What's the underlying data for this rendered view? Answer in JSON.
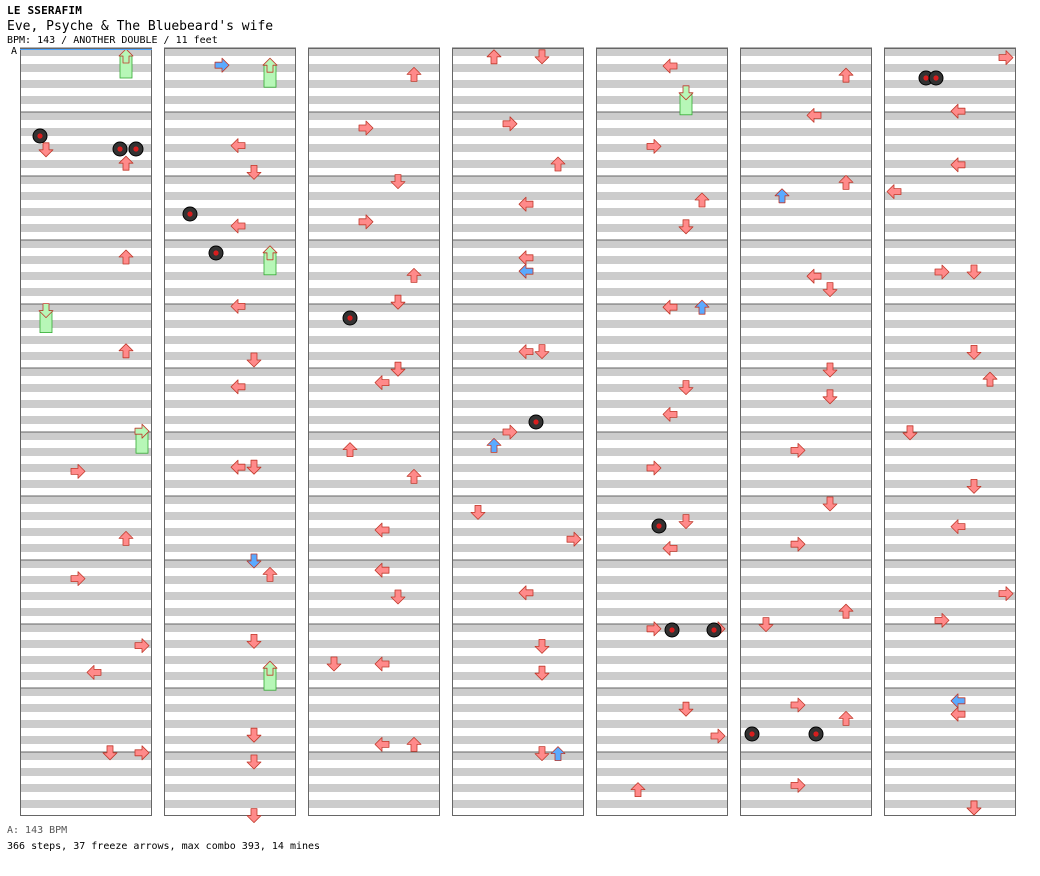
{
  "header": {
    "artist": "LE SSERAFIM",
    "song_title": "Eve, Psyche & The Bluebeard's wife",
    "meta_line": "BPM: 143 / ANOTHER DOUBLE / 11 feet",
    "bpm_marker": "A"
  },
  "footer": {
    "bpm_text": "A: 143 BPM",
    "stats_text": "366 steps, 37 freeze arrows, max combo 393, 14 mines"
  },
  "chart_data": {
    "type": "step-chart",
    "style": "double",
    "bpm": 143,
    "lanes": [
      "P1-left",
      "P1-down",
      "P1-up",
      "P1-right",
      "P2-left",
      "P2-down",
      "P2-up",
      "P2-right"
    ],
    "columns": 7,
    "measures_per_column": 12,
    "colors": {
      "quarter": "#ff8a8a",
      "eighth": "#5aaaff",
      "sixteenth": "#f3a6f3",
      "freeze": "#b7f7b7",
      "mine": "#333333",
      "mine_core": "#d81e1e",
      "row_shade": "#cccccc",
      "border": "#666666"
    },
    "notes": [
      [
        7,
        7,
        "down",
        "q"
      ],
      [
        19,
        7,
        "down",
        "f"
      ],
      [
        31,
        15,
        "right",
        "q"
      ],
      [
        39,
        13,
        "up",
        "q"
      ],
      [
        46,
        18,
        "right",
        "q"
      ],
      [
        52,
        22,
        "left",
        "q"
      ],
      [
        58,
        13,
        "up",
        "e"
      ],
      [
        64,
        16,
        "up",
        "q"
      ],
      [
        70,
        16,
        "left",
        "q"
      ],
      [
        76,
        18,
        "up",
        "q"
      ],
      [
        82,
        17,
        "up",
        "q"
      ],
      [
        88,
        21,
        "right",
        "q"
      ],
      [
        95,
        22,
        "up",
        "e"
      ],
      [
        101,
        20,
        "down",
        "q"
      ],
      [
        108,
        22,
        "right",
        "q"
      ],
      [
        114,
        20,
        "down",
        "q"
      ],
      [
        120,
        12,
        "up",
        "q"
      ],
      [
        127,
        14,
        "up",
        "q"
      ],
      [
        133,
        23,
        "up",
        "q"
      ],
      [
        139,
        18,
        "right",
        "q"
      ],
      [
        144,
        8,
        "down",
        "q"
      ],
      [
        150,
        17,
        "down",
        "q"
      ],
      [
        155,
        20,
        "down",
        "q"
      ],
      [
        160,
        4,
        "right",
        "q"
      ],
      [
        166,
        16,
        "right",
        "q"
      ],
      [
        172,
        8,
        "down",
        "q"
      ],
      [
        177,
        15,
        "up",
        "q"
      ],
      [
        183,
        17,
        "down",
        "q"
      ],
      [
        188,
        18,
        "down",
        "e"
      ],
      [
        194,
        20,
        "down",
        "q"
      ],
      [
        200,
        14,
        "right",
        "q"
      ],
      [
        206,
        5,
        "up",
        "q"
      ],
      [
        212,
        17,
        "right",
        "q"
      ],
      [
        218,
        22,
        "left",
        "q"
      ],
      [
        224,
        21,
        "down",
        "q"
      ],
      [
        230,
        18,
        "up",
        "q"
      ],
      [
        236,
        15,
        "right",
        "q"
      ],
      [
        242,
        21,
        "left",
        "q"
      ],
      [
        248,
        17,
        "down",
        "q"
      ],
      [
        254,
        21,
        "up",
        "q"
      ],
      [
        260,
        12,
        "up",
        "q"
      ],
      [
        266,
        18,
        "right",
        "q"
      ],
      [
        272,
        12,
        "right",
        "q"
      ],
      [
        278,
        22,
        "right",
        "q"
      ],
      [
        284,
        9,
        "up",
        "q"
      ],
      [
        291,
        18,
        "right",
        "q"
      ],
      [
        297,
        10,
        "right",
        "e"
      ],
      [
        303,
        16,
        "down",
        "q"
      ],
      [
        310,
        22,
        "down",
        "q"
      ],
      [
        316,
        15,
        "down",
        "q"
      ],
      [
        323,
        14,
        "right",
        "q"
      ],
      [
        329,
        7,
        "right",
        "q"
      ],
      [
        335,
        13,
        "up",
        "q"
      ],
      [
        341,
        13,
        "right",
        "q"
      ],
      [
        348,
        18,
        "left",
        "q"
      ],
      [
        354,
        3,
        "up",
        "q"
      ],
      [
        360,
        12,
        "right",
        "q"
      ],
      [
        366,
        22,
        "up",
        "q"
      ],
      [
        372,
        6,
        "right",
        "q"
      ],
      [
        379,
        19,
        "right",
        "q"
      ],
      [
        386,
        14,
        "up",
        "q"
      ],
      [
        393,
        17,
        "left",
        "q"
      ],
      [
        400,
        22,
        "down",
        "q"
      ],
      [
        0,
        24,
        "left",
        "f"
      ],
      [
        8,
        24,
        "left",
        "q"
      ],
      [
        15,
        25,
        "up",
        "q"
      ],
      [
        22,
        27,
        "left",
        "q"
      ],
      [
        28,
        29,
        "up",
        "f"
      ],
      [
        36,
        26,
        "down",
        "q"
      ],
      [
        44,
        28,
        "down",
        "q"
      ],
      [
        52,
        29,
        "right",
        "q"
      ],
      [
        58,
        24,
        "up",
        "f"
      ],
      [
        66,
        23,
        "up",
        "q"
      ],
      [
        72,
        25,
        "up",
        "f"
      ],
      [
        80,
        20,
        "left",
        "q"
      ],
      [
        88,
        18,
        "down",
        "q"
      ],
      [
        96,
        25,
        "up",
        "q"
      ],
      [
        103,
        27,
        "up",
        "f"
      ],
      [
        110,
        23,
        "down",
        "q"
      ],
      [
        116,
        25,
        "right",
        "q"
      ],
      [
        124,
        21,
        "up",
        "q"
      ],
      [
        131,
        26,
        "left",
        "q"
      ],
      [
        138,
        21,
        "left",
        "q"
      ],
      [
        146,
        24,
        "left",
        "q"
      ],
      [
        153,
        19,
        "down",
        "q"
      ],
      [
        160,
        18,
        "up",
        "q"
      ],
      [
        166,
        24,
        "right",
        "q"
      ],
      [
        172,
        20,
        "left",
        "q"
      ],
      [
        180,
        27,
        "down",
        "q"
      ],
      [
        187,
        16,
        "down",
        "q"
      ],
      [
        194,
        17,
        "right",
        "q"
      ],
      [
        201,
        11,
        "right",
        "e"
      ],
      [
        208,
        29,
        "down",
        "q"
      ],
      [
        216,
        22,
        "left",
        "q"
      ],
      [
        224,
        24,
        "up",
        "e"
      ],
      [
        232,
        21,
        "left",
        "f"
      ],
      [
        240,
        24,
        "left",
        "q"
      ],
      [
        248,
        25,
        "down",
        "e"
      ],
      [
        256,
        19,
        "up",
        "q"
      ],
      [
        264,
        22,
        "up",
        "q"
      ],
      [
        272,
        28,
        "right",
        "q"
      ],
      [
        280,
        30,
        "down",
        "q"
      ],
      [
        288,
        24,
        "right",
        "q"
      ],
      [
        296,
        25,
        "left",
        "q"
      ],
      [
        304,
        21,
        "left",
        "q"
      ],
      [
        312,
        22,
        "down",
        "q"
      ],
      [
        320,
        20,
        "right",
        "q"
      ],
      [
        328,
        24,
        "right",
        "q"
      ],
      [
        336,
        27,
        "right",
        "q"
      ],
      [
        344,
        29,
        "up",
        "q"
      ],
      [
        352,
        19,
        "down",
        "q"
      ],
      [
        360,
        23,
        "right",
        "q"
      ],
      [
        368,
        24,
        "left",
        "q"
      ],
      [
        376,
        21,
        "down",
        "q"
      ],
      [
        384,
        29,
        "up",
        "q"
      ],
      [
        392,
        17,
        "right",
        "e"
      ],
      [
        400,
        20,
        "left",
        "q"
      ]
    ]
  }
}
